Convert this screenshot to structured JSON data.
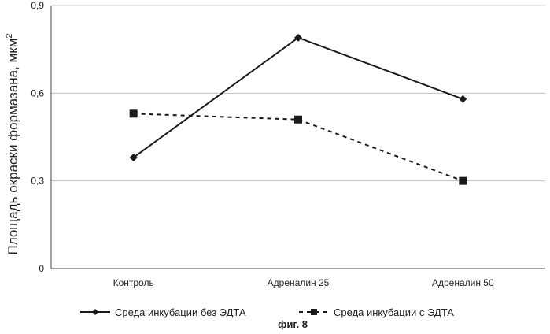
{
  "chart_data": {
    "type": "line",
    "categories": [
      "Контроль",
      "Адреналин 25",
      "Адреналин 50"
    ],
    "ylabel": "Площадь окраски формазана, мкм",
    "ylabel_sup": "2",
    "ylim": [
      0,
      0.9
    ],
    "yticks": [
      0,
      0.3,
      0.6,
      0.9
    ],
    "ytick_labels": [
      "0",
      "0,3",
      "0,6",
      "0,9"
    ],
    "grid": true,
    "legend_position": "bottom",
    "series": [
      {
        "name": "Среда инкубации без ЭДТА",
        "values": [
          0.38,
          0.79,
          0.58
        ],
        "marker": "diamond",
        "line_style": "solid",
        "color": "#1a1a1a"
      },
      {
        "name": "Среда инкубации с ЭДТА",
        "values": [
          0.53,
          0.51,
          0.3
        ],
        "marker": "square",
        "line_style": "dashed",
        "color": "#1a1a1a"
      }
    ]
  },
  "caption": "фиг. 8"
}
